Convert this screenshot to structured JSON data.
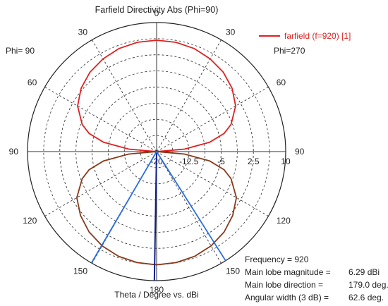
{
  "chart_data": {
    "type": "polar-line",
    "title": "Farfield Directivity Abs (Phi=90)",
    "xlabel": "Theta / Degree vs. dBi",
    "side_labels": {
      "left": "Phi= 90",
      "right": "Phi=270"
    },
    "angle_ticks": [
      "0",
      "30",
      "60",
      "90",
      "120",
      "150",
      "180",
      "150",
      "120",
      "90",
      "60",
      "30"
    ],
    "radial_range": [
      -20,
      10
    ],
    "radial_ticks": [
      {
        "value": -20,
        "label": "-20"
      },
      {
        "value": -12.5,
        "label": "-12.5"
      },
      {
        "value": -5,
        "label": "-5"
      },
      {
        "value": 2.5,
        "label": "2.5"
      },
      {
        "value": 10,
        "label": "10"
      }
    ],
    "series": [
      {
        "name": "farfield (f=920) [1]",
        "color_upper": "#e02020",
        "color_lower": "#8a3a1a",
        "theta_deg": [
          0,
          10,
          20,
          30,
          40,
          50,
          60,
          70,
          75,
          80,
          85,
          90,
          95,
          100,
          105,
          110,
          120,
          130,
          140,
          150,
          160,
          170,
          179,
          180
        ],
        "dbi": [
          5.9,
          5.8,
          5.5,
          4.9,
          4.1,
          2.9,
          1.2,
          -1.6,
          -3.8,
          -7.5,
          -13.5,
          -20,
          -13.5,
          -7.5,
          -3.8,
          -1.6,
          1.4,
          3.1,
          4.4,
          5.3,
          5.9,
          6.2,
          6.29,
          6.28
        ]
      }
    ],
    "main_lobe_direction_deg": 179.0,
    "angular_width_deg": 62.6,
    "grid": true
  },
  "info": {
    "frequency": "Frequency = 920",
    "rows": [
      {
        "label": "Main lobe magnitude =",
        "value": "6.29 dBi"
      },
      {
        "label": "Main lobe direction =",
        "value": "179.0 deg."
      },
      {
        "label": "Angular width (3 dB) =",
        "value": "62.6 deg."
      }
    ]
  },
  "colors": {
    "grid": "#333333",
    "main_lobe_line": "#0a1e8c",
    "beamwidth_lines": "#2a6fe0"
  }
}
